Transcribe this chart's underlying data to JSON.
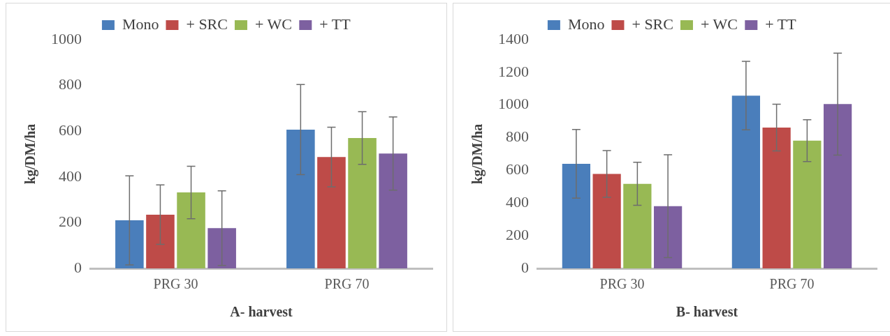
{
  "chart_data": [
    {
      "type": "bar",
      "xlabel": "A- harvest",
      "ylabel": "kg/DM/ha",
      "categories": [
        "PRG 30",
        "PRG 70"
      ],
      "ylim": [
        0,
        1000
      ],
      "yticks": [
        0,
        200,
        400,
        600,
        800,
        1000
      ],
      "grid": false,
      "legend": "top",
      "series": [
        {
          "name": "Mono",
          "color": "#4a7ebb",
          "values": [
            210,
            607
          ],
          "errors": [
            195,
            197
          ]
        },
        {
          "name": "+ SRC",
          "color": "#be4b48",
          "values": [
            235,
            487
          ],
          "errors": [
            130,
            130
          ]
        },
        {
          "name": "+ WC",
          "color": "#98b954",
          "values": [
            332,
            570
          ],
          "errors": [
            115,
            115
          ]
        },
        {
          "name": "+ TT",
          "color": "#7d60a0",
          "values": [
            176,
            502
          ],
          "errors": [
            163,
            160
          ]
        }
      ]
    },
    {
      "type": "bar",
      "xlabel": "B- harvest",
      "ylabel": "kg/DM/ha",
      "categories": [
        "PRG 30",
        "PRG 70"
      ],
      "ylim": [
        0,
        1400
      ],
      "yticks": [
        0,
        200,
        400,
        600,
        800,
        1000,
        1200,
        1400
      ],
      "grid": false,
      "legend": "top",
      "series": [
        {
          "name": "Mono",
          "color": "#4a7ebb",
          "values": [
            640,
            1058
          ],
          "errors": [
            210,
            210
          ]
        },
        {
          "name": "+ SRC",
          "color": "#be4b48",
          "values": [
            578,
            862
          ],
          "errors": [
            143,
            143
          ]
        },
        {
          "name": "+ WC",
          "color": "#98b954",
          "values": [
            518,
            782
          ],
          "errors": [
            132,
            128
          ]
        },
        {
          "name": "+ TT",
          "color": "#7d60a0",
          "values": [
            381,
            1006
          ],
          "errors": [
            315,
            312
          ]
        }
      ]
    }
  ]
}
